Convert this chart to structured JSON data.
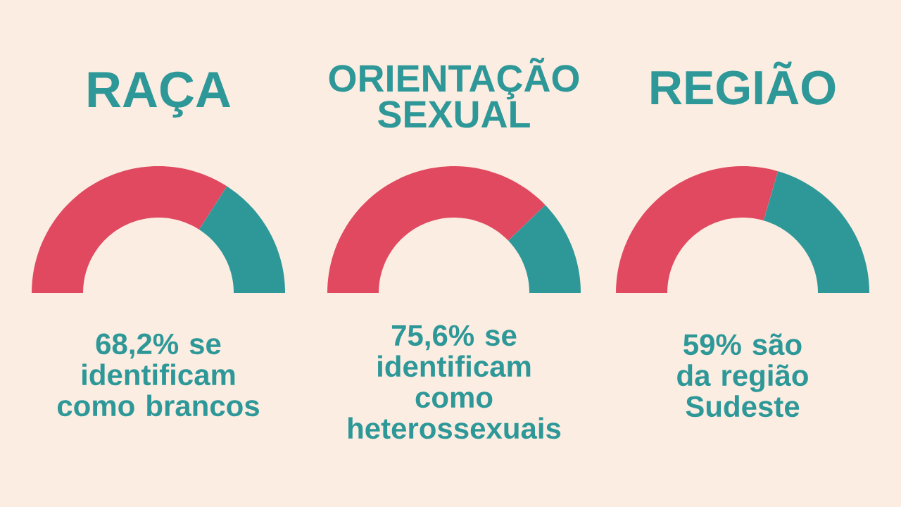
{
  "chart_data": [
    {
      "type": "donut",
      "title": "RAÇA",
      "categories": [
        null,
        null
      ],
      "values": [
        68.2,
        31.8
      ],
      "colors": [
        "#e0495f",
        "#2e9899"
      ],
      "annotations": [
        "68,2% se identificam como brancos"
      ]
    },
    {
      "type": "donut",
      "title": "ORIENTAÇÃO SEXUAL",
      "categories": [
        null,
        null
      ],
      "values": [
        75.6,
        24.4
      ],
      "colors": [
        "#e0495f",
        "#2e9899"
      ],
      "annotations": [
        "75,6% se identificam como heterossexuais"
      ]
    },
    {
      "type": "donut",
      "title": "REGIÃO",
      "categories": [
        null,
        null
      ],
      "values": [
        59,
        41
      ],
      "colors": [
        "#e0495f",
        "#2e9899"
      ],
      "annotations": [
        "59% são da região Sudeste"
      ]
    }
  ]
}
